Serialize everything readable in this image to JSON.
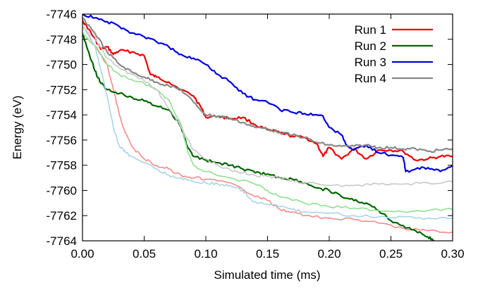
{
  "chart_data": {
    "type": "line",
    "xlabel": "Simulated time (ms)",
    "ylabel": "Energy (eV)",
    "xlim": [
      0.0,
      0.3
    ],
    "ylim": [
      -7764,
      -7746
    ],
    "xticks": [
      "0.00",
      "0.05",
      "0.10",
      "0.15",
      "0.20",
      "0.25",
      "0.30"
    ],
    "yticks": [
      "-7746",
      "-7748",
      "-7750",
      "-7752",
      "-7754",
      "-7756",
      "-7758",
      "-7760",
      "-7762",
      "-7764"
    ],
    "grid": false,
    "legend_position": "top-right",
    "series": [
      {
        "name": "Run 1",
        "color": "#ee0000",
        "points": [
          [
            0.0,
            -7746.5
          ],
          [
            0.005,
            -7747.2
          ],
          [
            0.01,
            -7748.0
          ],
          [
            0.015,
            -7748.8
          ],
          [
            0.02,
            -7748.6
          ],
          [
            0.025,
            -7749.2
          ],
          [
            0.03,
            -7748.9
          ],
          [
            0.04,
            -7749.0
          ],
          [
            0.05,
            -7749.3
          ],
          [
            0.055,
            -7750.8
          ],
          [
            0.06,
            -7751.0
          ],
          [
            0.07,
            -7751.4
          ],
          [
            0.08,
            -7752.0
          ],
          [
            0.09,
            -7752.5
          ],
          [
            0.095,
            -7753.2
          ],
          [
            0.1,
            -7754.2
          ],
          [
            0.11,
            -7754.1
          ],
          [
            0.12,
            -7754.3
          ],
          [
            0.13,
            -7754.2
          ],
          [
            0.14,
            -7754.8
          ],
          [
            0.15,
            -7755.2
          ],
          [
            0.16,
            -7755.4
          ],
          [
            0.17,
            -7755.7
          ],
          [
            0.18,
            -7755.8
          ],
          [
            0.19,
            -7756.3
          ],
          [
            0.195,
            -7757.3
          ],
          [
            0.2,
            -7756.6
          ],
          [
            0.21,
            -7757.5
          ],
          [
            0.22,
            -7756.7
          ],
          [
            0.23,
            -7757.5
          ],
          [
            0.24,
            -7756.8
          ],
          [
            0.25,
            -7756.8
          ],
          [
            0.26,
            -7756.9
          ],
          [
            0.27,
            -7757.6
          ],
          [
            0.28,
            -7757.5
          ],
          [
            0.29,
            -7757.3
          ],
          [
            0.3,
            -7757.3
          ]
        ]
      },
      {
        "name": "",
        "color": "#f58a8a",
        "points": [
          [
            0.0,
            -7747.0
          ],
          [
            0.01,
            -7748.5
          ],
          [
            0.02,
            -7750.0
          ],
          [
            0.025,
            -7752.0
          ],
          [
            0.03,
            -7754.0
          ],
          [
            0.035,
            -7755.5
          ],
          [
            0.04,
            -7756.5
          ],
          [
            0.05,
            -7757.5
          ],
          [
            0.06,
            -7758.0
          ],
          [
            0.07,
            -7758.3
          ],
          [
            0.08,
            -7758.8
          ],
          [
            0.09,
            -7759.0
          ],
          [
            0.1,
            -7759.1
          ],
          [
            0.12,
            -7759.4
          ],
          [
            0.14,
            -7760.5
          ],
          [
            0.15,
            -7760.8
          ],
          [
            0.16,
            -7761.5
          ],
          [
            0.17,
            -7761.7
          ],
          [
            0.18,
            -7762.0
          ],
          [
            0.2,
            -7762.2
          ],
          [
            0.22,
            -7762.3
          ],
          [
            0.24,
            -7762.6
          ],
          [
            0.26,
            -7763.0
          ],
          [
            0.28,
            -7763.2
          ],
          [
            0.3,
            -7763.3
          ]
        ]
      },
      {
        "name": "Run 2",
        "color": "#006600",
        "points": [
          [
            0.0,
            -7747.5
          ],
          [
            0.005,
            -7749.0
          ],
          [
            0.01,
            -7750.5
          ],
          [
            0.015,
            -7751.5
          ],
          [
            0.02,
            -7752.0
          ],
          [
            0.03,
            -7752.3
          ],
          [
            0.04,
            -7752.6
          ],
          [
            0.05,
            -7752.9
          ],
          [
            0.06,
            -7753.3
          ],
          [
            0.07,
            -7753.6
          ],
          [
            0.08,
            -7755.0
          ],
          [
            0.085,
            -7756.5
          ],
          [
            0.09,
            -7757.3
          ],
          [
            0.1,
            -7757.6
          ],
          [
            0.11,
            -7757.8
          ],
          [
            0.12,
            -7758.0
          ],
          [
            0.13,
            -7758.3
          ],
          [
            0.14,
            -7758.6
          ],
          [
            0.15,
            -7758.7
          ],
          [
            0.16,
            -7759.0
          ],
          [
            0.17,
            -7759.1
          ],
          [
            0.18,
            -7759.4
          ],
          [
            0.19,
            -7759.8
          ],
          [
            0.2,
            -7760.0
          ],
          [
            0.21,
            -7760.5
          ],
          [
            0.22,
            -7760.8
          ],
          [
            0.23,
            -7761.0
          ],
          [
            0.24,
            -7761.6
          ],
          [
            0.25,
            -7762.4
          ],
          [
            0.26,
            -7762.8
          ],
          [
            0.27,
            -7763.2
          ],
          [
            0.28,
            -7763.7
          ],
          [
            0.285,
            -7764.0
          ]
        ]
      },
      {
        "name": "",
        "color": "#90e090",
        "points": [
          [
            0.0,
            -7747.5
          ],
          [
            0.01,
            -7748.5
          ],
          [
            0.02,
            -7750.0
          ],
          [
            0.03,
            -7750.8
          ],
          [
            0.04,
            -7751.2
          ],
          [
            0.05,
            -7751.5
          ],
          [
            0.06,
            -7752.0
          ],
          [
            0.07,
            -7752.8
          ],
          [
            0.08,
            -7754.8
          ],
          [
            0.085,
            -7756.8
          ],
          [
            0.09,
            -7758.0
          ],
          [
            0.1,
            -7758.5
          ],
          [
            0.12,
            -7759.0
          ],
          [
            0.14,
            -7759.5
          ],
          [
            0.15,
            -7760.0
          ],
          [
            0.16,
            -7760.5
          ],
          [
            0.18,
            -7761.0
          ],
          [
            0.2,
            -7761.3
          ],
          [
            0.22,
            -7761.4
          ],
          [
            0.24,
            -7761.6
          ],
          [
            0.26,
            -7761.7
          ],
          [
            0.28,
            -7761.6
          ],
          [
            0.3,
            -7761.5
          ]
        ]
      },
      {
        "name": "Run 3",
        "color": "#0000dd",
        "points": [
          [
            0.0,
            -7746.0
          ],
          [
            0.01,
            -7746.3
          ],
          [
            0.02,
            -7746.6
          ],
          [
            0.03,
            -7747.0
          ],
          [
            0.04,
            -7747.5
          ],
          [
            0.05,
            -7747.8
          ],
          [
            0.06,
            -7748.2
          ],
          [
            0.07,
            -7748.6
          ],
          [
            0.08,
            -7749.2
          ],
          [
            0.09,
            -7749.5
          ],
          [
            0.1,
            -7750.0
          ],
          [
            0.11,
            -7750.8
          ],
          [
            0.12,
            -7751.4
          ],
          [
            0.13,
            -7752.3
          ],
          [
            0.14,
            -7752.8
          ],
          [
            0.15,
            -7753.0
          ],
          [
            0.16,
            -7753.6
          ],
          [
            0.17,
            -7753.8
          ],
          [
            0.18,
            -7753.9
          ],
          [
            0.19,
            -7754.0
          ],
          [
            0.195,
            -7754.1
          ],
          [
            0.2,
            -7755.0
          ],
          [
            0.21,
            -7755.6
          ],
          [
            0.215,
            -7756.5
          ],
          [
            0.22,
            -7756.8
          ],
          [
            0.23,
            -7756.4
          ],
          [
            0.24,
            -7757.0
          ],
          [
            0.25,
            -7757.2
          ],
          [
            0.26,
            -7757.4
          ],
          [
            0.262,
            -7758.5
          ],
          [
            0.27,
            -7758.3
          ],
          [
            0.28,
            -7758.2
          ],
          [
            0.29,
            -7758.5
          ],
          [
            0.3,
            -7758.0
          ]
        ]
      },
      {
        "name": "",
        "color": "#a8d4e6",
        "points": [
          [
            0.0,
            -7747.0
          ],
          [
            0.01,
            -7748.5
          ],
          [
            0.015,
            -7750.5
          ],
          [
            0.02,
            -7752.5
          ],
          [
            0.025,
            -7755.0
          ],
          [
            0.03,
            -7756.5
          ],
          [
            0.035,
            -7757.0
          ],
          [
            0.04,
            -7757.3
          ],
          [
            0.05,
            -7757.8
          ],
          [
            0.06,
            -7758.3
          ],
          [
            0.07,
            -7758.8
          ],
          [
            0.08,
            -7759.0
          ],
          [
            0.09,
            -7759.3
          ],
          [
            0.1,
            -7759.4
          ],
          [
            0.11,
            -7759.5
          ],
          [
            0.12,
            -7759.6
          ],
          [
            0.13,
            -7760.0
          ],
          [
            0.135,
            -7760.6
          ],
          [
            0.14,
            -7760.9
          ],
          [
            0.15,
            -7761.1
          ],
          [
            0.16,
            -7761.3
          ],
          [
            0.17,
            -7761.5
          ],
          [
            0.18,
            -7761.7
          ],
          [
            0.2,
            -7761.8
          ],
          [
            0.22,
            -7762.0
          ],
          [
            0.24,
            -7762.1
          ],
          [
            0.26,
            -7762.1
          ],
          [
            0.28,
            -7762.2
          ],
          [
            0.3,
            -7762.2
          ]
        ]
      },
      {
        "name": "Run 4",
        "color": "#888888",
        "points": [
          [
            0.0,
            -7746.3
          ],
          [
            0.01,
            -7747.5
          ],
          [
            0.02,
            -7749.0
          ],
          [
            0.03,
            -7750.0
          ],
          [
            0.04,
            -7750.6
          ],
          [
            0.05,
            -7751.0
          ],
          [
            0.06,
            -7751.4
          ],
          [
            0.07,
            -7751.7
          ],
          [
            0.08,
            -7752.0
          ],
          [
            0.09,
            -7753.0
          ],
          [
            0.1,
            -7754.0
          ],
          [
            0.11,
            -7754.1
          ],
          [
            0.12,
            -7754.3
          ],
          [
            0.13,
            -7754.6
          ],
          [
            0.14,
            -7755.0
          ],
          [
            0.15,
            -7755.1
          ],
          [
            0.16,
            -7755.4
          ],
          [
            0.17,
            -7755.6
          ],
          [
            0.18,
            -7755.8
          ],
          [
            0.19,
            -7756.2
          ],
          [
            0.2,
            -7756.4
          ],
          [
            0.21,
            -7756.5
          ],
          [
            0.22,
            -7756.5
          ],
          [
            0.23,
            -7756.4
          ],
          [
            0.24,
            -7756.6
          ],
          [
            0.25,
            -7756.6
          ],
          [
            0.26,
            -7756.7
          ],
          [
            0.27,
            -7756.7
          ],
          [
            0.28,
            -7756.9
          ],
          [
            0.29,
            -7756.8
          ],
          [
            0.3,
            -7756.7
          ]
        ]
      },
      {
        "name": "",
        "color": "#c8c8c8",
        "points": [
          [
            0.0,
            -7747.0
          ],
          [
            0.01,
            -7748.0
          ],
          [
            0.02,
            -7749.5
          ],
          [
            0.03,
            -7750.3
          ],
          [
            0.04,
            -7750.8
          ],
          [
            0.05,
            -7751.3
          ],
          [
            0.06,
            -7752.0
          ],
          [
            0.07,
            -7753.5
          ],
          [
            0.08,
            -7755.0
          ],
          [
            0.09,
            -7756.8
          ],
          [
            0.1,
            -7757.5
          ],
          [
            0.11,
            -7758.0
          ],
          [
            0.12,
            -7758.4
          ],
          [
            0.13,
            -7758.6
          ],
          [
            0.14,
            -7758.8
          ],
          [
            0.15,
            -7758.9
          ],
          [
            0.16,
            -7759.0
          ],
          [
            0.17,
            -7759.2
          ],
          [
            0.18,
            -7759.4
          ],
          [
            0.2,
            -7759.6
          ],
          [
            0.22,
            -7759.6
          ],
          [
            0.24,
            -7759.5
          ],
          [
            0.26,
            -7759.5
          ],
          [
            0.28,
            -7759.4
          ],
          [
            0.3,
            -7759.3
          ]
        ]
      }
    ]
  }
}
